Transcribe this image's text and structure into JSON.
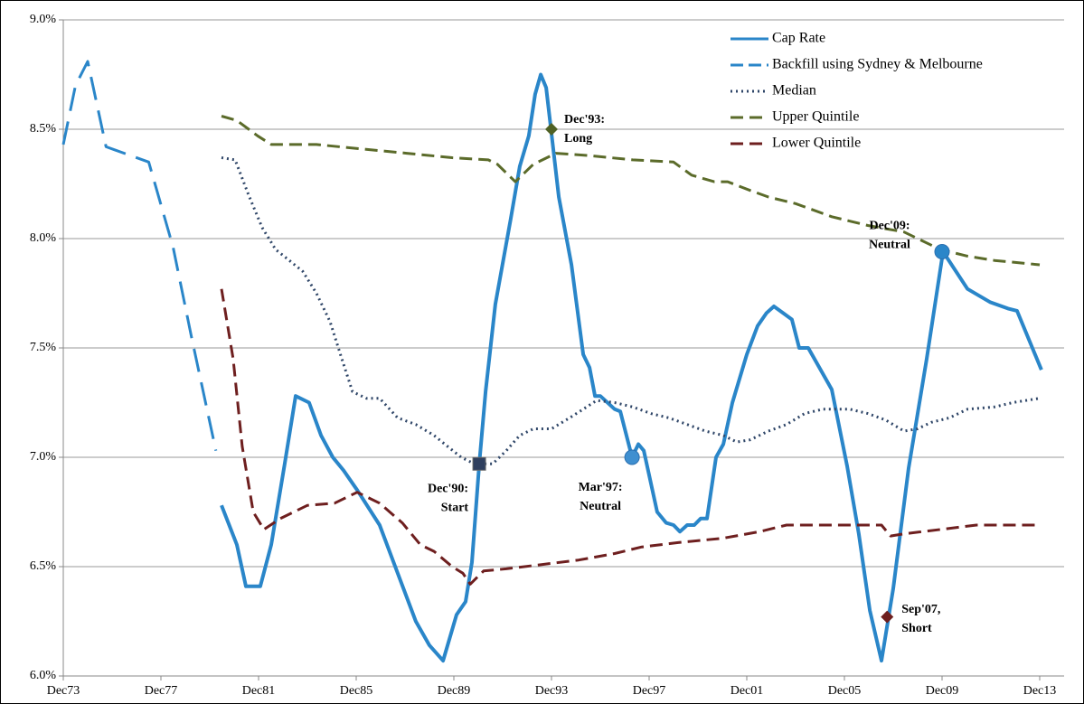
{
  "chart_data": {
    "type": "line",
    "xlim": [
      1973.92,
      2014.92
    ],
    "xticks": [
      {
        "value": 1973.92,
        "label": "Dec73"
      },
      {
        "value": 1977.92,
        "label": "Dec77"
      },
      {
        "value": 1981.92,
        "label": "Dec81"
      },
      {
        "value": 1985.92,
        "label": "Dec85"
      },
      {
        "value": 1989.92,
        "label": "Dec89"
      },
      {
        "value": 1993.92,
        "label": "Dec93"
      },
      {
        "value": 1997.92,
        "label": "Dec97"
      },
      {
        "value": 2001.92,
        "label": "Dec01"
      },
      {
        "value": 2005.92,
        "label": "Dec05"
      },
      {
        "value": 2009.92,
        "label": "Dec09"
      },
      {
        "value": 2013.92,
        "label": "Dec13"
      }
    ],
    "ylim": [
      6,
      9
    ],
    "yticks": [
      {
        "value": 6,
        "label": "6.0%"
      },
      {
        "value": 6.5,
        "label": "6.5%"
      },
      {
        "value": 7,
        "label": "7.0%"
      },
      {
        "value": 7.5,
        "label": "7.5%"
      },
      {
        "value": 8,
        "label": "8.0%"
      },
      {
        "value": 8.5,
        "label": "8.5%"
      },
      {
        "value": 9,
        "label": "9.0%"
      }
    ],
    "grid": true,
    "legend": "upper right",
    "series": [
      {
        "name": "Cap Rate",
        "color": "#2a86c9",
        "dash": "solid",
        "x": [
          1980.4,
          1981.03,
          1981.4,
          1981.99,
          1982.44,
          1982.99,
          1983.44,
          1983.99,
          1984.48,
          1984.96,
          1985.4,
          1985.96,
          1986.88,
          1987.62,
          1988.36,
          1988.92,
          1989.48,
          1990.03,
          1990.4,
          1990.66,
          1990.96,
          1991.22,
          1991.62,
          1992.25,
          1992.62,
          1992.99,
          1993.25,
          1993.48,
          1993.7,
          1993.92,
          1994.22,
          1994.74,
          1995.22,
          1995.48,
          1995.7,
          1995.92,
          1996.51,
          1996.74,
          1997.22,
          1997.48,
          1997.7,
          1998.25,
          1998.62,
          1998.92,
          1999.18,
          1999.48,
          1999.77,
          2000.03,
          2000.29,
          2000.66,
          2000.96,
          2001.33,
          2001.92,
          2002.36,
          2002.73,
          2003.03,
          2003.4,
          2003.77,
          2004.07,
          2004.44,
          2005.4,
          2006.03,
          2006.51,
          2006.96,
          2007.44,
          2007.92,
          2008.55,
          2009.29,
          2009.96,
          2010.96,
          2011.88,
          2012.62,
          2012.99,
          2013.99
        ],
        "values": [
          6.78,
          6.6,
          6.41,
          6.41,
          6.6,
          6.97,
          7.28,
          7.25,
          7.1,
          7.0,
          6.94,
          6.85,
          6.69,
          6.47,
          6.25,
          6.14,
          6.07,
          6.28,
          6.34,
          6.52,
          6.97,
          7.3,
          7.7,
          8.09,
          8.33,
          8.47,
          8.66,
          8.75,
          8.69,
          8.48,
          8.19,
          7.88,
          7.47,
          7.41,
          7.28,
          7.28,
          7.22,
          7.21,
          7.0,
          7.06,
          7.03,
          6.75,
          6.7,
          6.69,
          6.66,
          6.69,
          6.69,
          6.72,
          6.72,
          7.0,
          7.06,
          7.25,
          7.47,
          7.6,
          7.66,
          7.69,
          7.66,
          7.63,
          7.5,
          7.5,
          7.31,
          6.96,
          6.65,
          6.3,
          6.07,
          6.4,
          6.95,
          7.45,
          7.94,
          7.77,
          7.71,
          7.68,
          7.67,
          7.4
        ]
      },
      {
        "name": "Backfill using Sydney & Melbourne",
        "color": "#2a86c9",
        "dash": "longdash",
        "x": [
          1973.92,
          1974.42,
          1974.92,
          1975.67,
          1977.42,
          1978.42,
          1979.17,
          1980.17
        ],
        "values": [
          8.43,
          8.7,
          8.81,
          8.42,
          8.35,
          7.96,
          7.55,
          7.03
        ]
      },
      {
        "name": "Median",
        "color": "#2f4668",
        "dash": "dotted",
        "x": [
          1980.4,
          1980.96,
          1981.51,
          1982.07,
          1982.62,
          1983.18,
          1983.73,
          1984.29,
          1984.85,
          1985.33,
          1985.77,
          1986.33,
          1986.88,
          1987.62,
          1988.36,
          1989.11,
          1989.66,
          1990.22,
          1990.77,
          1991.51,
          1992.07,
          1992.62,
          1993.18,
          1993.92,
          1994.66,
          1995.22,
          1995.77,
          1996.51,
          1997.25,
          1997.99,
          1998.73,
          1999.48,
          2000.22,
          2000.96,
          2001.51,
          2002.07,
          2002.81,
          2003.55,
          2004.29,
          2005.03,
          2006.14,
          2006.88,
          2007.62,
          2008.36,
          2008.92,
          2009.48,
          2010.22,
          2010.96,
          2012.07,
          2012.81,
          2013.92
        ],
        "values": [
          8.37,
          8.36,
          8.2,
          8.05,
          7.95,
          7.9,
          7.85,
          7.75,
          7.62,
          7.45,
          7.3,
          7.27,
          7.27,
          7.18,
          7.15,
          7.1,
          7.05,
          7.0,
          6.97,
          6.97,
          7.03,
          7.1,
          7.13,
          7.13,
          7.18,
          7.22,
          7.26,
          7.25,
          7.23,
          7.2,
          7.18,
          7.15,
          7.12,
          7.1,
          7.07,
          7.08,
          7.12,
          7.15,
          7.2,
          7.22,
          7.22,
          7.2,
          7.17,
          7.12,
          7.13,
          7.16,
          7.18,
          7.22,
          7.23,
          7.25,
          7.27
        ]
      },
      {
        "name": "Upper Quintile",
        "color": "#5b6b2a",
        "dash": "dashed",
        "x": [
          1980.4,
          1981.03,
          1981.88,
          1982.44,
          1984.29,
          1986.14,
          1987.99,
          1989.85,
          1991.33,
          1991.7,
          1992.44,
          1993.18,
          1994.11,
          1995.4,
          1997.25,
          1998.92,
          1999.66,
          2000.59,
          2001.14,
          2002.07,
          2002.81,
          2003.92,
          2005.4,
          2006.88,
          2008.36,
          2009.85,
          2010.96,
          2012.07,
          2013.92
        ],
        "values": [
          8.56,
          8.54,
          8.47,
          8.43,
          8.43,
          8.41,
          8.39,
          8.37,
          8.36,
          8.34,
          8.26,
          8.34,
          8.39,
          8.38,
          8.36,
          8.35,
          8.29,
          8.26,
          8.26,
          8.22,
          8.19,
          8.16,
          8.1,
          8.06,
          8.03,
          7.95,
          7.92,
          7.9,
          7.88
        ]
      },
      {
        "name": "Lower Quintile",
        "color": "#6e1f1f",
        "dash": "dashed",
        "x": [
          1980.4,
          1980.88,
          1981.25,
          1981.7,
          1982.14,
          1982.81,
          1983.92,
          1985.03,
          1985.96,
          1986.88,
          1987.81,
          1988.55,
          1989.11,
          1989.85,
          1990.29,
          1990.59,
          1991.14,
          1992.07,
          1993.55,
          1995.03,
          1996.51,
          1997.62,
          1999.11,
          2000.96,
          2002.44,
          2003.55,
          2005.77,
          2007.44,
          2007.81,
          2008.36,
          2009.85,
          2011.33,
          2013.92
        ],
        "values": [
          7.77,
          7.45,
          7.05,
          6.75,
          6.67,
          6.72,
          6.78,
          6.79,
          6.84,
          6.79,
          6.7,
          6.6,
          6.57,
          6.5,
          6.47,
          6.42,
          6.48,
          6.49,
          6.51,
          6.53,
          6.56,
          6.59,
          6.61,
          6.63,
          6.66,
          6.69,
          6.69,
          6.69,
          6.64,
          6.65,
          6.67,
          6.69,
          6.69
        ]
      }
    ],
    "annotations": [
      {
        "label": [
          "Dec'90:",
          "Start"
        ],
        "x": 1990.96,
        "y": 6.97,
        "marker": "square",
        "color": "#2f3f5e"
      },
      {
        "label": [
          "Dec'93:",
          "Long"
        ],
        "x": 1993.92,
        "y": 8.5,
        "marker": "diamond",
        "color": "#4f6125"
      },
      {
        "label": [
          "Mar'97:",
          "Neutral"
        ],
        "x": 1997.22,
        "y": 7.0,
        "marker": "circle",
        "color": "#3f8fd0"
      },
      {
        "label": [
          "Sep'07,",
          "Short"
        ],
        "x": 2007.67,
        "y": 6.27,
        "marker": "diamond",
        "color": "#6e1f1f"
      },
      {
        "label": [
          "Dec'09:",
          "Neutral"
        ],
        "x": 2009.92,
        "y": 7.94,
        "marker": "circle",
        "color": "#2a86c9"
      }
    ]
  }
}
